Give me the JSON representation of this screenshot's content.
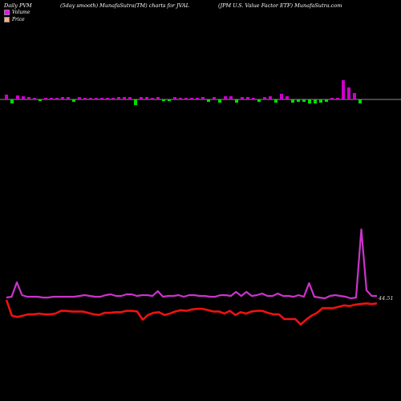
{
  "header": {
    "left": "Daily PVM",
    "center_left": "(5day smooth) MunafaSutra(TM) charts for JVAL",
    "center_right": "(JPM U.S. Value  Factor ETF) MunafaSutra.com"
  },
  "legend": [
    {
      "label": "Volume",
      "color": "#ff00ff"
    },
    {
      "label": "Price",
      "color": "#ffb080"
    }
  ],
  "colors": {
    "up_bar": "#cc00cc",
    "down_bar": "#00dd00",
    "volume_line": "#cc33cc",
    "price_line": "#ee1111",
    "baseline": "#bbbbbb"
  },
  "chart_data": [
    {
      "type": "bar",
      "title": "Volume",
      "baseline": 0,
      "series": [
        {
          "values": [
            6,
            -5,
            5,
            4,
            3,
            2,
            -2,
            2,
            2,
            2,
            3,
            3,
            -3,
            3,
            2,
            2,
            2,
            2,
            2,
            2,
            3,
            3,
            3,
            -7,
            3,
            3,
            2,
            3,
            -2,
            -2,
            3,
            2,
            2,
            2,
            2,
            3,
            -3,
            3,
            -4,
            4,
            4,
            -4,
            3,
            3,
            2,
            -3,
            3,
            4,
            -4,
            7,
            4,
            -4,
            -3,
            -3,
            -5,
            -5,
            -4,
            -3,
            2,
            2,
            24,
            15,
            8,
            -5
          ]
        }
      ]
    },
    {
      "type": "line",
      "series": [
        {
          "name": "Volume",
          "values": [
            7,
            8,
            26,
            10,
            8,
            8,
            8,
            7,
            7,
            8,
            8,
            8,
            8,
            8,
            9,
            10,
            9,
            8,
            8,
            10,
            11,
            9,
            9,
            11,
            11,
            9,
            10,
            10,
            9,
            15,
            8,
            9,
            9,
            10,
            8,
            10,
            10,
            9,
            9,
            8,
            8,
            10,
            10,
            9,
            14,
            9,
            14,
            9,
            10,
            12,
            9,
            9,
            12,
            9,
            9,
            8,
            10,
            8,
            25,
            8,
            7,
            6,
            9,
            10,
            9,
            8,
            6,
            7,
            92,
            16,
            9,
            9
          ]
        },
        {
          "name": "Price",
          "values": [
            0,
            -23,
            -25,
            -23,
            -21,
            -21,
            -20,
            -21,
            -21,
            -20,
            -16,
            -16,
            -17,
            -17,
            -17,
            -19,
            -21,
            -22,
            -19,
            -19,
            -18,
            -18,
            -16,
            -16,
            -17,
            -29,
            -22,
            -19,
            -18,
            -22,
            -20,
            -17,
            -15,
            -16,
            -14,
            -13,
            -13,
            -15,
            -17,
            -17,
            -20,
            -16,
            -22,
            -18,
            -20,
            -17,
            -16,
            -16,
            -19,
            -21,
            -21,
            -28,
            -28,
            -28,
            -36,
            -29,
            -23,
            -19,
            -12,
            -12,
            -12,
            -10,
            -8,
            -9,
            -7,
            -6,
            -5,
            -6,
            -5
          ]
        }
      ],
      "last_label": "44.51"
    }
  ]
}
